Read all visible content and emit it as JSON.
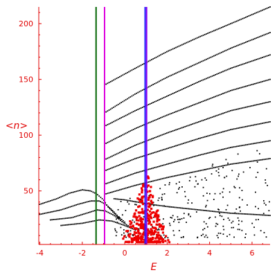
{
  "chart_data": {
    "type": "scatter",
    "xlabel": "E",
    "ylabel": "<n>",
    "xlim": [
      -4.05,
      6.85
    ],
    "ylim": [
      2,
      215
    ],
    "x_ticks": [
      -4,
      -2,
      0,
      2,
      4,
      6
    ],
    "x_tick_labels": [
      "-4",
      "-2",
      "0",
      "2",
      "4",
      "6"
    ],
    "y_ticks": [
      50,
      100,
      150,
      200
    ],
    "y_tick_labels": [
      "50",
      "100",
      "150",
      "200"
    ],
    "grid": false,
    "colors": {
      "axis": "#e00000",
      "black_points": "#000000",
      "red_points": "#ee0000",
      "line_green": "#006400",
      "line_magenta": "#dd00dd",
      "line_purple": "#8800ee",
      "line_blue": "#2222ff"
    },
    "vertical_lines": [
      {
        "x": -1.35,
        "color": "#006400"
      },
      {
        "x": -0.95,
        "color": "#dd00dd"
      },
      {
        "x": 0.96,
        "color": "#2222ff"
      },
      {
        "x": 1.03,
        "color": "#8800ee"
      }
    ],
    "series": [
      {
        "color": "#000000",
        "kind": "curve_families",
        "curves": [
          [
            [
              -0.95,
              145
            ],
            [
              0.5,
              160
            ],
            [
              2,
              175
            ],
            [
              3.5,
              188
            ],
            [
              5,
              200
            ],
            [
              6.85,
              215
            ]
          ],
          [
            [
              -0.95,
              120
            ],
            [
              0.5,
              137
            ],
            [
              2,
              152
            ],
            [
              3.5,
              165
            ],
            [
              5,
              178
            ],
            [
              6.85,
              192
            ]
          ],
          [
            [
              -0.95,
              108
            ],
            [
              0.5,
              122
            ],
            [
              2,
              135
            ],
            [
              3.5,
              148
            ],
            [
              5,
              160
            ],
            [
              6.85,
              172
            ]
          ],
          [
            [
              -0.95,
              92
            ],
            [
              0.5,
              106
            ],
            [
              2,
              118
            ],
            [
              3.5,
              129
            ],
            [
              5,
              140
            ],
            [
              6.85,
              150
            ]
          ],
          [
            [
              -0.95,
              78
            ],
            [
              0.5,
              91
            ],
            [
              2,
              102
            ],
            [
              3.5,
              112
            ],
            [
              5,
              122
            ],
            [
              6.85,
              130
            ]
          ],
          [
            [
              -0.95,
              68
            ],
            [
              0.5,
              79
            ],
            [
              2,
              88
            ],
            [
              3.5,
              97
            ],
            [
              5,
              105
            ],
            [
              6.85,
              112
            ]
          ],
          [
            [
              -0.95,
              56
            ],
            [
              0.5,
              66
            ],
            [
              2,
              74
            ],
            [
              3.5,
              82
            ],
            [
              5,
              89
            ],
            [
              6.85,
              95
            ]
          ],
          [
            [
              -0.95,
              47
            ],
            [
              0.5,
              55
            ],
            [
              2,
              62
            ],
            [
              3.5,
              68
            ],
            [
              5,
              74
            ],
            [
              6.85,
              79
            ]
          ],
          [
            [
              -4.0,
              38
            ],
            [
              -3.2,
              43
            ],
            [
              -2.6,
              48
            ],
            [
              -2.0,
              51
            ],
            [
              -1.6,
              50
            ],
            [
              -1.3,
              47
            ],
            [
              -1.0,
              42
            ],
            [
              -0.8,
              36
            ],
            [
              -0.5,
              30
            ],
            [
              -0.2,
              24
            ]
          ],
          [
            [
              -4.0,
              29
            ],
            [
              -3.0,
              33
            ],
            [
              -2.2,
              38
            ],
            [
              -1.6,
              41
            ],
            [
              -1.2,
              41
            ],
            [
              -0.9,
              38
            ],
            [
              -0.6,
              33
            ],
            [
              -0.3,
              27
            ],
            [
              0.0,
              22
            ]
          ],
          [
            [
              -3.5,
              24
            ],
            [
              -2.5,
              26
            ],
            [
              -1.8,
              30
            ],
            [
              -1.3,
              33
            ],
            [
              -0.9,
              32
            ],
            [
              -0.5,
              28
            ],
            [
              -0.1,
              22
            ],
            [
              0.3,
              17
            ]
          ],
          [
            [
              -3.0,
              19
            ],
            [
              -2.0,
              21
            ],
            [
              -1.2,
              24
            ],
            [
              -0.6,
              23
            ],
            [
              0.0,
              19
            ],
            [
              0.5,
              15
            ]
          ],
          [
            [
              -0.5,
              43
            ],
            [
              0.0,
              42
            ],
            [
              0.6,
              40
            ],
            [
              1.2,
              38
            ],
            [
              2.0,
              36
            ],
            [
              3.0,
              34
            ],
            [
              4.0,
              32
            ],
            [
              5.0,
              30
            ],
            [
              6.0,
              29
            ],
            [
              6.85,
              28
            ]
          ]
        ],
        "scatter_region": {
          "x_range": [
            -0.5,
            6.85
          ],
          "y_range": [
            8,
            95
          ]
        }
      },
      {
        "color": "#ee0000",
        "kind": "cluster",
        "center_x": 1.0,
        "spread_x": 1.2,
        "y_range": [
          4,
          65
        ]
      }
    ]
  }
}
